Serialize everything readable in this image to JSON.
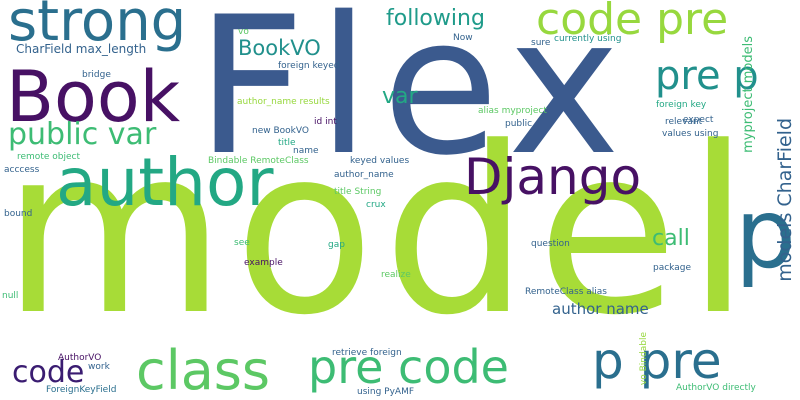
{
  "words": {
    "flex": "Flex",
    "model": "model",
    "strong": "strong",
    "book": "Book",
    "author": "author",
    "code_pre": "code pre",
    "pre_p": "pre p",
    "following": "following",
    "django": "Django",
    "p_big": "p",
    "class": "class",
    "pre_code": "pre code",
    "p_pre": "p pre",
    "code": "code",
    "public_var": "public var",
    "var": "var",
    "bookvo": "BookVO",
    "call": "call",
    "author_name": "author name",
    "models_charfield": "models CharField",
    "myproject_models": "myproject models",
    "charfield_max_length": "CharField max_length",
    "vo": "vo",
    "foreign_keyed": "foreign keyed",
    "now": "Now",
    "sure": "sure",
    "currently_using": "currently using",
    "bridge": "bridge",
    "author_name_results": "author_name results",
    "alias_myproject": "alias myproject",
    "foreign_key": "foreign key",
    "new_bookvo": "new BookVO",
    "id_int": "id int",
    "public": "public",
    "relevant": "relevant",
    "values_using": "values using",
    "expect": "expect",
    "remote_object": "remote object",
    "title": "title",
    "bindable_remoteclass": "Bindable RemoteClass",
    "keyed_values": "keyed values",
    "acccess": "acccess",
    "author_name_small": "author_name",
    "title_string": "title String",
    "crux": "crux",
    "bound": "bound",
    "see": "see",
    "gap": "gap",
    "question": "question",
    "example": "example",
    "package": "package",
    "realize": "realize",
    "null": "null",
    "remoteclass_alias": "RemoteClass alias",
    "authorvo": "AuthorVO",
    "work": "work",
    "retrieve_foreign": "retrieve foreign",
    "name": "name",
    "vo_bindable": "vo Bindable",
    "foreignkeyfield": "ForeignKeyField",
    "using_pyamf": "using PyAMF",
    "authorvo_directly": "AuthorVO directly"
  }
}
